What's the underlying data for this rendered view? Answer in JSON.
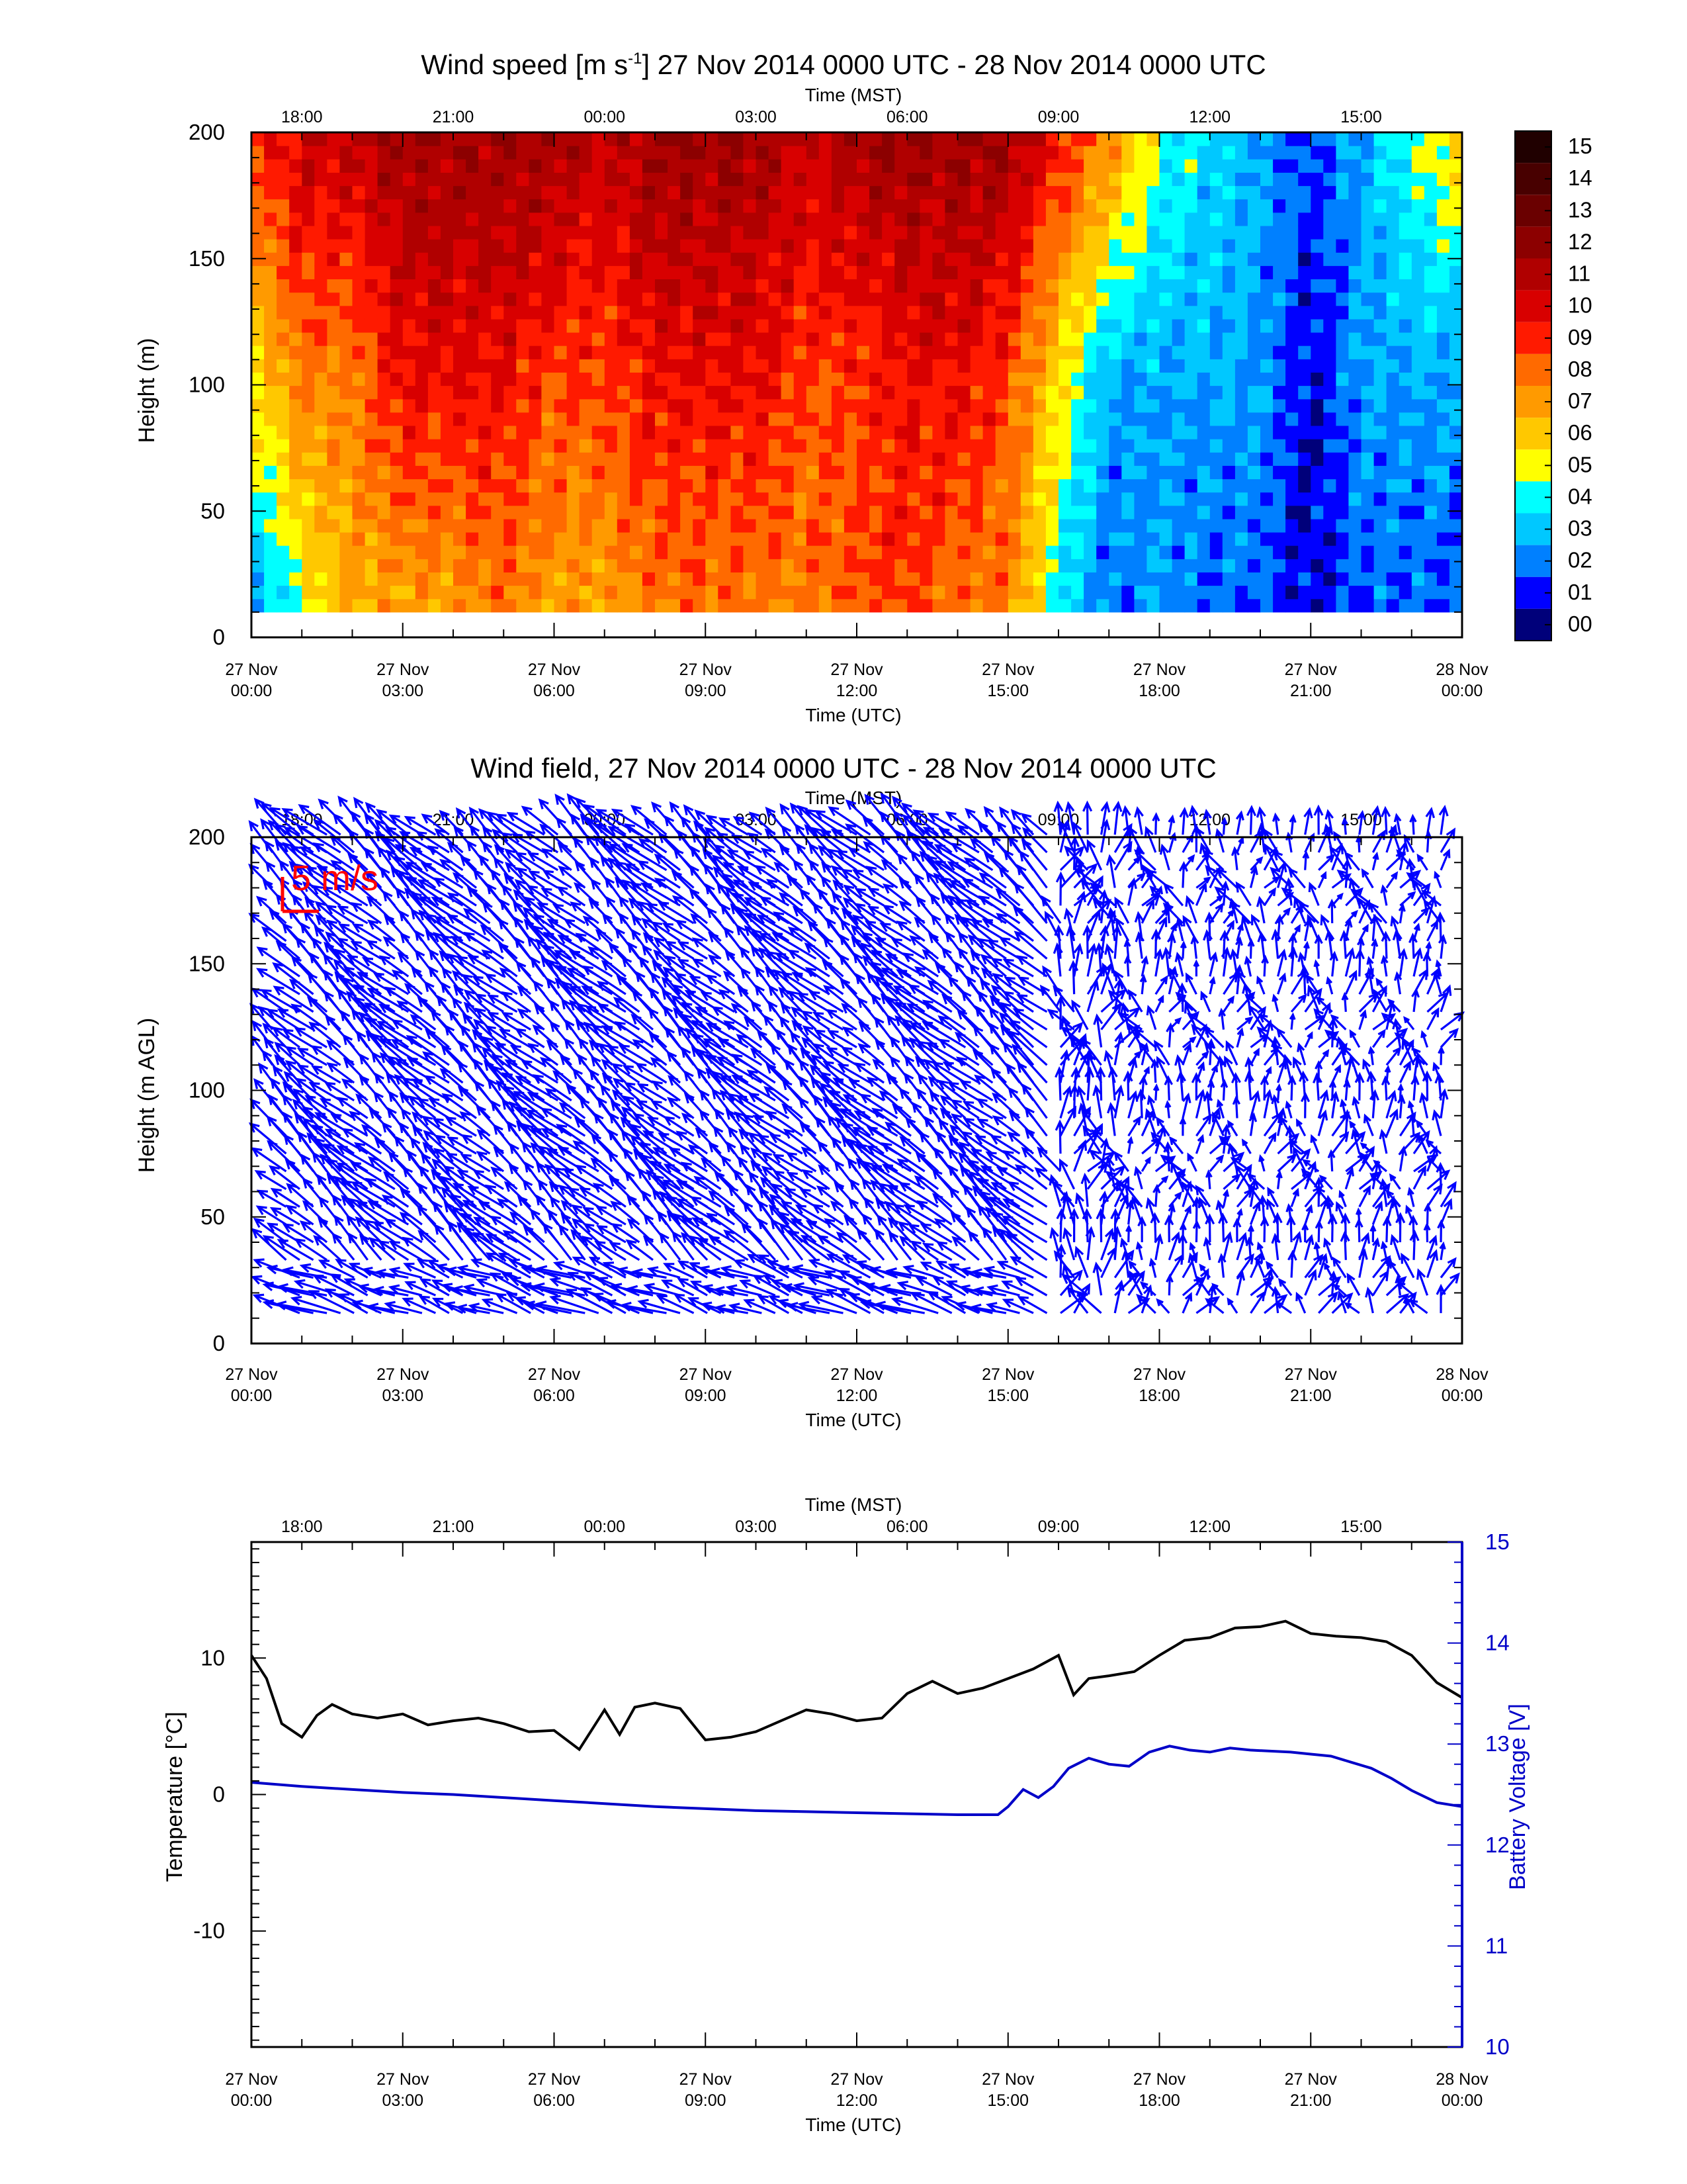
{
  "panels": {
    "speed": {
      "title_main": "Wind speed [m s",
      "title_sup": "-1",
      "title_rest": "] 27 Nov 2014 0000 UTC - 28 Nov 2014 0000 UTC",
      "top_axis_label": "Time (MST)",
      "bottom_axis_label": "Time (UTC)",
      "ylabel": "Height (m)",
      "colorbar_labels": [
        "15",
        "14",
        "13",
        "12",
        "11",
        "10",
        "09",
        "08",
        "07",
        "06",
        "05",
        "04",
        "03",
        "02",
        "01",
        "00"
      ]
    },
    "field": {
      "title": "Wind field, 27 Nov 2014 0000 UTC - 28 Nov 2014 0000 UTC",
      "top_axis_label": "Time (MST)",
      "bottom_axis_label": "Time (UTC)",
      "ylabel": "Height (m AGL)",
      "legend_label": "5 m/s"
    },
    "temp": {
      "top_axis_label": "Time (MST)",
      "bottom_axis_label": "Time (UTC)",
      "ylabel_left": "Temperature [°C]",
      "ylabel_right": "Battery Voltage [V]"
    }
  },
  "x_axis": {
    "top_ticks": [
      "18:00",
      "21:00",
      "00:00",
      "03:00",
      "06:00",
      "09:00",
      "12:00",
      "15:00"
    ],
    "bottom_ticks": [
      {
        "d": "27 Nov",
        "t": "00:00"
      },
      {
        "d": "27 Nov",
        "t": "03:00"
      },
      {
        "d": "27 Nov",
        "t": "06:00"
      },
      {
        "d": "27 Nov",
        "t": "09:00"
      },
      {
        "d": "27 Nov",
        "t": "12:00"
      },
      {
        "d": "27 Nov",
        "t": "15:00"
      },
      {
        "d": "27 Nov",
        "t": "18:00"
      },
      {
        "d": "27 Nov",
        "t": "21:00"
      },
      {
        "d": "28 Nov",
        "t": "00:00"
      }
    ]
  },
  "colors": {
    "colorbar": [
      "#200000",
      "#480000",
      "#6a0000",
      "#8c0000",
      "#b00000",
      "#d80000",
      "#ff1a00",
      "#ff6a00",
      "#ff9a00",
      "#ffc800",
      "#ffff00",
      "#00ffff",
      "#00c8ff",
      "#0080ff",
      "#0000ff",
      "#00007a"
    ],
    "vector": "#0000ff",
    "legend": "#ff0000",
    "temperature": "#000000",
    "battery": "#0000c8"
  },
  "chart_data": [
    {
      "type": "heatmap",
      "title": "Wind speed [m s-1] 27 Nov 2014 0000 UTC - 28 Nov 2014 0000 UTC",
      "xlabel": "Time (UTC)",
      "x2label": "Time (MST)",
      "ylabel": "Height (m)",
      "xlim_hours": [
        0,
        24
      ],
      "ylim": [
        0,
        200
      ],
      "yticks": [
        0,
        50,
        100,
        150,
        200
      ],
      "colorbar_range": [
        0,
        15
      ],
      "times_hours": [
        0,
        1,
        2,
        3,
        4,
        5,
        6,
        7,
        8,
        9,
        10,
        11,
        12,
        13,
        14,
        15,
        16,
        17,
        18,
        19,
        20,
        21,
        22,
        23,
        24
      ],
      "profiles_low_mid_high": [
        [
          2,
          6,
          9
        ],
        [
          5,
          8,
          11
        ],
        [
          7,
          8,
          11
        ],
        [
          7,
          10,
          12
        ],
        [
          7,
          10,
          12
        ],
        [
          8,
          10,
          12
        ],
        [
          7,
          9,
          12
        ],
        [
          7,
          9,
          11
        ],
        [
          8,
          10,
          12
        ],
        [
          8,
          10,
          12
        ],
        [
          8,
          10,
          12
        ],
        [
          8,
          9,
          11
        ],
        [
          9,
          9,
          12
        ],
        [
          9,
          10,
          12
        ],
        [
          8,
          10,
          12
        ],
        [
          8,
          9,
          12
        ],
        [
          4,
          6,
          10
        ],
        [
          2,
          3,
          8
        ],
        [
          3,
          3,
          5
        ],
        [
          2,
          3,
          4
        ],
        [
          2,
          3,
          3
        ],
        [
          1,
          1,
          2
        ],
        [
          2,
          3,
          3
        ],
        [
          2,
          3,
          5
        ],
        [
          2,
          3,
          6
        ]
      ]
    },
    {
      "type": "scatter",
      "subtype": "vector field",
      "title": "Wind field, 27 Nov 2014 0000 UTC - 28 Nov 2014 0000 UTC",
      "xlabel": "Time (UTC)",
      "x2label": "Time (MST)",
      "ylabel": "Height (m AGL)",
      "xlim_hours": [
        0,
        24
      ],
      "ylim": [
        0,
        200
      ],
      "yticks": [
        0,
        50,
        100,
        150,
        200
      ],
      "reference_vector_ms": 5,
      "regimes": [
        {
          "from_hour": 0,
          "to_hour": 15.9,
          "direction": "from SE, pointing up-left",
          "speed_ms": 9
        },
        {
          "from_hour": 15.9,
          "to_hour": 24,
          "direction": "variable, mostly pointing up",
          "speed_ms": 3
        }
      ]
    },
    {
      "type": "line",
      "xlabel": "Time (UTC)",
      "x2label": "Time (MST)",
      "ylabel": "Temperature [°C]",
      "y2label": "Battery Voltage [V]",
      "xlim_hours": [
        0,
        24
      ],
      "ylim": [
        -18.5,
        18.5
      ],
      "yticks": [
        -10,
        0,
        10
      ],
      "y2lim": [
        10,
        15
      ],
      "y2ticks": [
        10,
        11,
        12,
        13,
        14,
        15
      ],
      "series": [
        {
          "name": "Temperature [°C]",
          "axis": "left",
          "x": [
            0,
            0.3,
            0.6,
            1.0,
            1.3,
            1.6,
            2.0,
            2.5,
            3.0,
            3.5,
            4.0,
            4.5,
            5.0,
            5.5,
            6.0,
            6.5,
            7.0,
            7.3,
            7.6,
            8.0,
            8.5,
            9.0,
            9.5,
            10.0,
            10.5,
            11.0,
            11.5,
            12.0,
            12.5,
            13.0,
            13.5,
            14.0,
            14.5,
            15.0,
            15.5,
            16.0,
            16.3,
            16.6,
            17.0,
            17.5,
            18.0,
            18.5,
            19.0,
            19.5,
            20.0,
            20.5,
            21.0,
            21.5,
            22.0,
            22.5,
            23.0,
            23.5,
            24.0
          ],
          "y": [
            10.2,
            8.5,
            5.2,
            4.2,
            5.8,
            6.6,
            5.9,
            5.6,
            5.9,
            5.1,
            5.4,
            5.6,
            5.2,
            4.6,
            4.7,
            3.3,
            6.2,
            4.4,
            6.4,
            6.7,
            6.3,
            4.0,
            4.2,
            4.6,
            5.4,
            6.2,
            5.9,
            5.4,
            5.6,
            7.4,
            8.3,
            7.4,
            7.8,
            8.5,
            9.2,
            10.2,
            7.3,
            8.5,
            8.7,
            9.0,
            10.2,
            11.3,
            11.5,
            12.2,
            12.3,
            12.7,
            11.8,
            11.6,
            11.5,
            11.2,
            10.2,
            8.2,
            7.1
          ]
        },
        {
          "name": "Battery Voltage [V]",
          "axis": "right",
          "x": [
            0,
            1,
            2,
            3,
            4,
            5,
            6,
            7,
            8,
            9,
            10,
            11,
            12,
            13,
            14,
            14.8,
            15.0,
            15.3,
            15.6,
            15.9,
            16.2,
            16.6,
            17.0,
            17.4,
            17.8,
            18.2,
            18.6,
            19.0,
            19.4,
            19.8,
            20.2,
            20.6,
            21.0,
            21.4,
            21.8,
            22.2,
            22.6,
            23.0,
            23.5,
            24.0
          ],
          "y": [
            12.62,
            12.58,
            12.55,
            12.52,
            12.5,
            12.47,
            12.44,
            12.41,
            12.38,
            12.36,
            12.34,
            12.33,
            12.32,
            12.31,
            12.3,
            12.3,
            12.38,
            12.55,
            12.47,
            12.58,
            12.76,
            12.86,
            12.8,
            12.78,
            12.92,
            12.98,
            12.94,
            12.92,
            12.96,
            12.94,
            12.93,
            12.92,
            12.9,
            12.88,
            12.82,
            12.76,
            12.66,
            12.54,
            12.42,
            12.38
          ]
        }
      ]
    }
  ]
}
